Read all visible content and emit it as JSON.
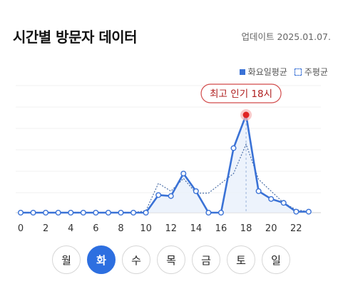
{
  "header": {
    "title": "시간별 방문자 데이터",
    "updated": "업데이트 2025.01.07."
  },
  "legend": {
    "series_label": "화요일평균",
    "weekly_label": "주평균"
  },
  "peak_label": "최고 인기 18시",
  "colors": {
    "accent": "#2d6fe0",
    "line": "#3a72d6",
    "peak": "#e02424",
    "peak_border": "#d24b4b",
    "fill": "#e8f0fb"
  },
  "days": [
    {
      "label": "월",
      "active": false
    },
    {
      "label": "화",
      "active": true
    },
    {
      "label": "수",
      "active": false
    },
    {
      "label": "목",
      "active": false
    },
    {
      "label": "금",
      "active": false
    },
    {
      "label": "토",
      "active": false
    },
    {
      "label": "일",
      "active": false
    }
  ],
  "chart_data": {
    "type": "line",
    "x": [
      0,
      1,
      2,
      3,
      4,
      5,
      6,
      7,
      8,
      9,
      10,
      11,
      12,
      13,
      14,
      15,
      16,
      17,
      18,
      19,
      20,
      21,
      22,
      23
    ],
    "xticks": [
      "0",
      "2",
      "4",
      "6",
      "8",
      "10",
      "12",
      "14",
      "16",
      "18",
      "20",
      "22"
    ],
    "xlim": [
      0,
      23
    ],
    "ylim": [
      0,
      100
    ],
    "series": [
      {
        "name": "화요일평균",
        "values": [
          0,
          0,
          0,
          0,
          0,
          0,
          0,
          0,
          0,
          0,
          0,
          18,
          17,
          40,
          22,
          0,
          0,
          66,
          100,
          22,
          14,
          10,
          1,
          1
        ]
      },
      {
        "name": "주평균",
        "values": [
          0,
          0,
          0,
          0,
          0,
          0,
          0,
          0,
          0,
          0,
          2,
          30,
          22,
          35,
          20,
          20,
          30,
          40,
          70,
          34,
          22,
          10,
          3,
          1
        ]
      }
    ],
    "peak": {
      "x": 18,
      "y": 100
    },
    "grid": true
  }
}
